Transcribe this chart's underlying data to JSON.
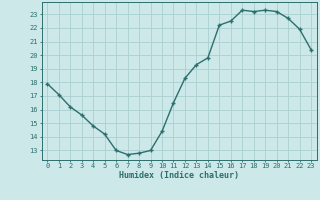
{
  "x": [
    0,
    1,
    2,
    3,
    4,
    5,
    6,
    7,
    8,
    9,
    10,
    11,
    12,
    13,
    14,
    15,
    16,
    17,
    18,
    19,
    20,
    21,
    22,
    23
  ],
  "y": [
    17.9,
    17.1,
    16.2,
    15.6,
    14.8,
    14.2,
    13.0,
    12.7,
    12.8,
    13.0,
    14.4,
    16.5,
    18.3,
    19.3,
    19.8,
    22.2,
    22.5,
    23.3,
    23.2,
    23.3,
    23.2,
    22.7,
    21.9,
    20.4
  ],
  "xlabel": "Humidex (Indice chaleur)",
  "xlim": [
    -0.5,
    23.5
  ],
  "ylim": [
    12.3,
    23.9
  ],
  "yticks": [
    13,
    14,
    15,
    16,
    17,
    18,
    19,
    20,
    21,
    22,
    23
  ],
  "xticks": [
    0,
    1,
    2,
    3,
    4,
    5,
    6,
    7,
    8,
    9,
    10,
    11,
    12,
    13,
    14,
    15,
    16,
    17,
    18,
    19,
    20,
    21,
    22,
    23
  ],
  "line_color": "#2d6e6e",
  "marker_color": "#2d6e6e",
  "bg_color": "#cce8e8",
  "grid_color": "#aad0d0",
  "axis_color": "#2d6e6e",
  "text_color": "#2d6e6e",
  "font_family": "monospace",
  "tick_fontsize": 5.0,
  "xlabel_fontsize": 6.0,
  "linewidth": 1.0,
  "markersize": 3.5,
  "markeredgewidth": 1.0
}
